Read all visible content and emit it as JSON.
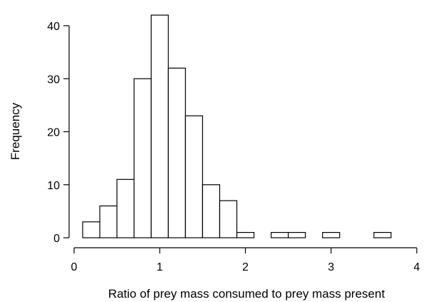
{
  "chart_data": {
    "type": "bar",
    "subtype": "histogram",
    "title": "",
    "xlabel": "Ratio of prey mass consumed to prey mass present",
    "ylabel": "Frequency",
    "xlim": [
      0,
      4
    ],
    "ylim": [
      0,
      45
    ],
    "xticks": [
      0,
      1,
      2,
      3,
      4
    ],
    "yticks": [
      0,
      10,
      20,
      30,
      40
    ],
    "grid": false,
    "legend": "none",
    "bin_edges": [
      0.1,
      0.3,
      0.5,
      0.7,
      0.9,
      1.1,
      1.3,
      1.5,
      1.7,
      1.9,
      2.1,
      2.3,
      2.5,
      2.7,
      2.9,
      3.1,
      3.3,
      3.5,
      3.7
    ],
    "values": [
      3,
      6,
      11,
      30,
      42,
      32,
      23,
      10,
      7,
      1,
      0,
      1,
      1,
      0,
      1,
      0,
      0,
      1
    ]
  }
}
